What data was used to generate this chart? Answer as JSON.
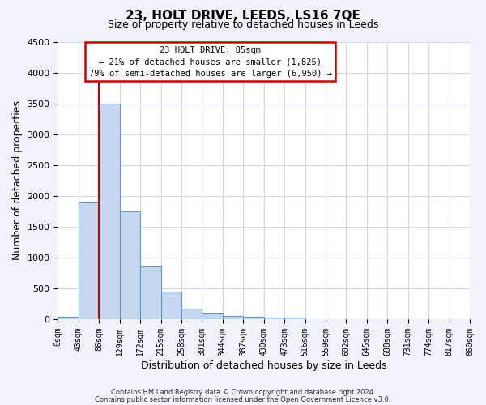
{
  "title": "23, HOLT DRIVE, LEEDS, LS16 7QE",
  "subtitle": "Size of property relative to detached houses in Leeds",
  "xlabel": "Distribution of detached houses by size in Leeds",
  "ylabel": "Number of detached properties",
  "bin_edges": [
    0,
    43,
    86,
    129,
    172,
    215,
    258,
    301,
    344,
    387,
    430,
    473,
    516,
    559,
    602,
    645,
    688,
    731,
    774,
    817,
    860
  ],
  "bar_heights": [
    40,
    1900,
    3500,
    1750,
    850,
    450,
    175,
    90,
    55,
    40,
    30,
    20,
    0,
    0,
    0,
    0,
    0,
    0,
    0,
    0
  ],
  "bar_color": "#c5d8ef",
  "bar_edge_color": "#5b9bd5",
  "property_line_x": 86,
  "ylim": [
    0,
    4500
  ],
  "annotation_text_line1": "23 HOLT DRIVE: 85sqm",
  "annotation_text_line2": "← 21% of detached houses are smaller (1,825)",
  "annotation_text_line3": "79% of semi-detached houses are larger (6,950) →",
  "annotation_box_color": "#cc0000",
  "footer_line1": "Contains HM Land Registry data © Crown copyright and database right 2024.",
  "footer_line2": "Contains public sector information licensed under the Open Government Licence v3.0.",
  "bg_color": "#f0f4fa",
  "plot_bg_color": "#ffffff",
  "grid_color": "#d0daea",
  "tick_labels": [
    "0sqm",
    "43sqm",
    "86sqm",
    "129sqm",
    "172sqm",
    "215sqm",
    "258sqm",
    "301sqm",
    "344sqm",
    "387sqm",
    "430sqm",
    "473sqm",
    "516sqm",
    "559sqm",
    "602sqm",
    "645sqm",
    "688sqm",
    "731sqm",
    "774sqm",
    "817sqm",
    "860sqm"
  ],
  "yticks": [
    0,
    500,
    1000,
    1500,
    2000,
    2500,
    3000,
    3500,
    4000,
    4500
  ]
}
